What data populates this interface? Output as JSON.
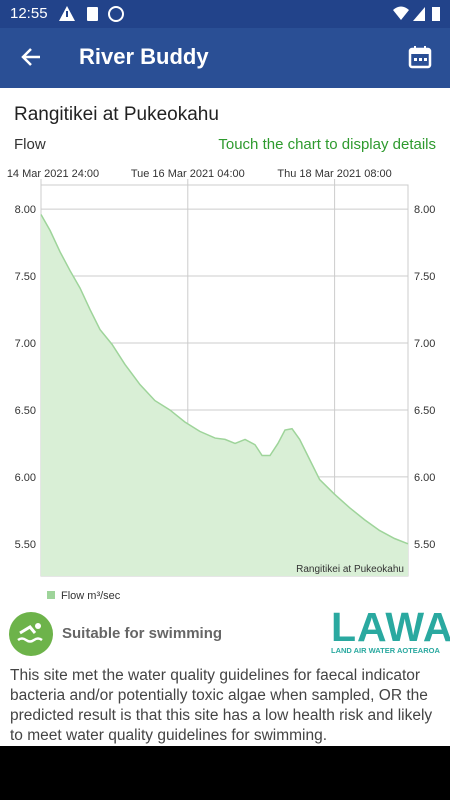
{
  "status_bar": {
    "time": "12:55"
  },
  "app_bar": {
    "title": "River Buddy"
  },
  "site": {
    "name": "Rangitikei at Pukeokahu",
    "measure": "Flow",
    "hint": "Touch the chart to display details"
  },
  "chart_data": {
    "type": "area",
    "x": [
      0,
      3.1,
      6.5,
      9.9,
      13.3,
      16.7,
      20.1,
      24.2,
      28.6,
      33.7,
      38.8,
      43.9,
      49,
      54.1,
      59.3,
      62.7,
      66.1,
      69.5,
      72.9,
      75.3,
      78,
      80.7,
      83.1,
      85.5,
      88.1,
      91.5,
      94.9,
      100,
      105.1,
      110.2,
      115.3,
      120.4,
      125
    ],
    "series": [
      {
        "name": "Flow m³/sec",
        "color": "#9ed49a",
        "values": [
          7.96,
          7.84,
          7.68,
          7.54,
          7.41,
          7.25,
          7.1,
          6.99,
          6.84,
          6.69,
          6.57,
          6.5,
          6.41,
          6.34,
          6.29,
          6.28,
          6.25,
          6.28,
          6.24,
          6.16,
          6.16,
          6.25,
          6.35,
          6.36,
          6.28,
          6.13,
          5.98,
          5.87,
          5.77,
          5.68,
          5.6,
          5.54,
          5.5
        ]
      }
    ],
    "fill_color": "#d9efd6",
    "xlim": [
      0,
      125
    ],
    "xticks": [
      {
        "value": 0,
        "label": "14 Mar 2021 24:00"
      },
      {
        "value": 50,
        "label": "Tue 16 Mar 2021 04:00"
      },
      {
        "value": 100,
        "label": "Thu 18 Mar 2021 08:00"
      }
    ],
    "ylim": [
      5.26,
      8.18
    ],
    "yticks": [
      {
        "value": 5.5,
        "label": "5.50"
      },
      {
        "value": 6,
        "label": "6.00"
      },
      {
        "value": 6.5,
        "label": "6.50"
      },
      {
        "value": 7,
        "label": "7.00"
      },
      {
        "value": 7.5,
        "label": "7.50"
      },
      {
        "value": 8,
        "label": "8.00"
      }
    ],
    "y2lim": [
      5.26,
      8.18
    ],
    "y2ticks": [
      {
        "value": 5.5,
        "label": "5.50"
      },
      {
        "value": 6,
        "label": "6.00"
      },
      {
        "value": 6.5,
        "label": "6.50"
      },
      {
        "value": 7,
        "label": "7.00"
      },
      {
        "value": 7.5,
        "label": "7.50"
      },
      {
        "value": 8,
        "label": "8.00"
      }
    ],
    "annotation": "Rangitikei at Pukeokahu",
    "grid": true
  },
  "swimming": {
    "status": "Suitable for swimming"
  },
  "logo": {
    "name": "LAWA",
    "tagline": "LAND AIR WATER AOTEAROA"
  },
  "description": "This site met the water quality guidelines for faecal indicator bacteria and/or potentially toxic algae when sampled, OR the predicted result is that this site has a low health risk and likely to meet water quality guidelines for swimming."
}
